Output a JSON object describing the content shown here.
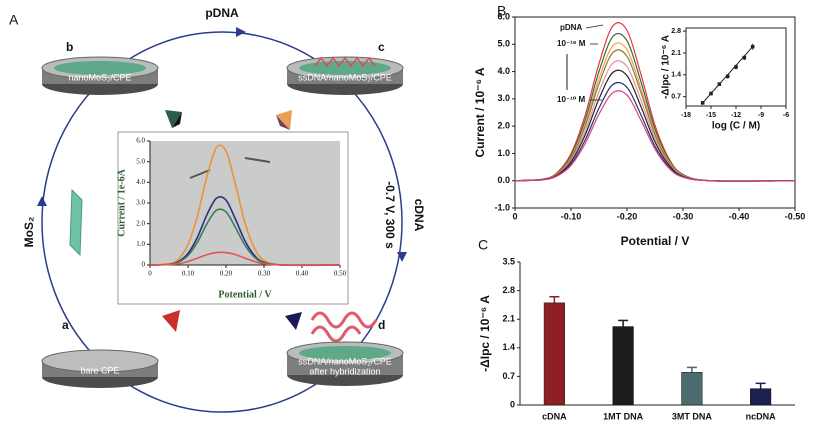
{
  "diagram": {
    "panel_label": "A",
    "nodes": [
      {
        "letter": "a",
        "label": "bare CPE"
      },
      {
        "letter": "b",
        "label": "nanoMoS₂/CPE"
      },
      {
        "letter": "c",
        "label": "ssDNA/nanoMoS₂/CPE"
      },
      {
        "letter": "d",
        "label": "ssDNA/nanoMoS₂/CPE",
        "sublabel": "after hybridization"
      }
    ],
    "edges": [
      {
        "label": "MoS₂"
      },
      {
        "label": "pDNA"
      },
      {
        "label": "cDNA",
        "condition": "-0.7 V, 300 s"
      }
    ]
  },
  "chart_data": [
    {
      "type": "line",
      "x_label": "Potential / V",
      "y_label": "Current / 1e-6A",
      "x": [
        0,
        0.05,
        0.075,
        0.1,
        0.125,
        0.15,
        0.175,
        0.2,
        0.225,
        0.25,
        0.275,
        0.3,
        0.35,
        0.5
      ],
      "series": [
        {
          "color": "#f0913a",
          "values": [
            0,
            0.06,
            0.29,
            0.99,
            2.38,
            4.29,
            5.68,
            5.51,
            3.89,
            2.03,
            0.81,
            0.23,
            0,
            0
          ]
        },
        {
          "color": "#2b2f7c",
          "values": [
            0,
            0.03,
            0.17,
            0.56,
            1.35,
            2.44,
            3.23,
            3.14,
            2.21,
            1.16,
            0.46,
            0.13,
            0,
            0
          ]
        },
        {
          "color": "#3d7d5c",
          "values": [
            0,
            0.03,
            0.14,
            0.46,
            1.11,
            2.0,
            2.65,
            2.57,
            1.81,
            0.95,
            0.38,
            0.11,
            0,
            0
          ]
        },
        {
          "color": "#e25555",
          "values": [
            0,
            0.02,
            0.06,
            0.17,
            0.33,
            0.5,
            0.6,
            0.6,
            0.5,
            0.33,
            0.17,
            0.06,
            0,
            0
          ]
        }
      ],
      "xlim": [
        0,
        0.5
      ],
      "xticks": [
        0,
        {
          "value": 0.1,
          "label": "0.10"
        },
        {
          "value": 0.2,
          "label": "0.20"
        },
        {
          "value": 0.3,
          "label": "0.30"
        },
        {
          "value": 0.4,
          "label": "0.40"
        },
        {
          "value": 0.5,
          "label": "0.50"
        }
      ],
      "ylim": [
        0,
        6
      ],
      "yticks": [
        0,
        {
          "value": 1,
          "label": "1.0"
        },
        {
          "value": 2,
          "label": "2.0"
        },
        {
          "value": 3,
          "label": "3.0"
        },
        {
          "value": 4,
          "label": "4.0"
        },
        {
          "value": 5,
          "label": "5.0"
        },
        {
          "value": 6,
          "label": "6.0"
        }
      ]
    },
    {
      "type": "line",
      "panel_label": "B",
      "x_label": "Potential / V",
      "y_label": "Current / 10⁻⁶ A",
      "x": [
        0,
        -0.05,
        -0.075,
        -0.1,
        -0.125,
        -0.15,
        -0.175,
        -0.2,
        -0.225,
        -0.25,
        -0.275,
        -0.3,
        -0.35,
        -0.5
      ],
      "series": [
        {
          "name": "pDNA",
          "color": "#e8343c",
          "values": [
            0,
            0.06,
            0.29,
            0.99,
            2.38,
            4.29,
            5.68,
            5.51,
            3.89,
            2.03,
            0.81,
            0.23,
            0,
            0
          ]
        },
        {
          "name": "10⁻¹⁶ M",
          "color": "#2f6b45",
          "values": [
            0,
            0.05,
            0.27,
            0.92,
            2.21,
            4.0,
            5.29,
            5.13,
            3.62,
            1.89,
            0.76,
            0.22,
            0,
            0
          ]
        },
        {
          "color": "#f2a23c",
          "values": [
            0,
            0.05,
            0.25,
            0.86,
            2.07,
            3.74,
            4.95,
            4.8,
            3.38,
            1.77,
            0.71,
            0.2,
            0,
            0
          ]
        },
        {
          "color": "#8a7a3a",
          "values": [
            0,
            0.05,
            0.24,
            0.82,
            1.97,
            3.55,
            4.7,
            4.56,
            3.22,
            1.68,
            0.67,
            0.19,
            0,
            0
          ]
        },
        {
          "color": "#e58fa8",
          "values": [
            0,
            0.04,
            0.22,
            0.75,
            1.8,
            3.26,
            4.31,
            4.18,
            2.95,
            1.54,
            0.62,
            0.18,
            0,
            0
          ]
        },
        {
          "color": "#222222",
          "values": [
            0,
            0.04,
            0.2,
            0.69,
            1.66,
            3.0,
            3.97,
            3.85,
            2.71,
            1.42,
            0.57,
            0.16,
            0,
            0
          ]
        },
        {
          "color": "#2a2f78",
          "values": [
            0,
            0.04,
            0.18,
            0.61,
            1.48,
            2.66,
            3.53,
            3.42,
            2.41,
            1.26,
            0.5,
            0.14,
            0,
            0
          ]
        },
        {
          "name": "10⁻¹⁰ M",
          "color": "#d8457a",
          "values": [
            0,
            0.03,
            0.17,
            0.56,
            1.35,
            2.44,
            3.23,
            3.14,
            2.21,
            1.16,
            0.46,
            0.13,
            0,
            0
          ]
        }
      ],
      "xlim": [
        0,
        -0.5
      ],
      "xticks": [
        0,
        {
          "value": -0.1,
          "label": "-0.10"
        },
        {
          "value": -0.2,
          "label": "-0.20"
        },
        {
          "value": -0.3,
          "label": "-0.30"
        },
        {
          "value": -0.4,
          "label": "-0.40"
        },
        {
          "value": -0.5,
          "label": "-0.50"
        }
      ],
      "ylim": [
        -1,
        6
      ],
      "yticks": [
        {
          "value": -1,
          "label": "-1.0"
        },
        {
          "value": 0,
          "label": "0.0"
        },
        {
          "value": 1,
          "label": "1.0"
        },
        {
          "value": 2,
          "label": "2.0"
        },
        {
          "value": 3,
          "label": "3.0"
        },
        {
          "value": 4,
          "label": "4.0"
        },
        {
          "value": 5,
          "label": "5.0"
        },
        {
          "value": 6,
          "label": "6.0"
        }
      ]
    },
    {
      "type": "scatter",
      "x_label": "log (C / M)",
      "y_label": "-ΔIpc / 10⁻⁶ A",
      "x": [
        -16,
        -15,
        -14,
        -13,
        -12,
        -11,
        -10
      ],
      "values": [
        0.5,
        0.8,
        1.1,
        1.35,
        1.65,
        1.95,
        2.3
      ],
      "errors": [
        0.05,
        0.06,
        0.05,
        0.07,
        0.08,
        0.08,
        0.1
      ],
      "color": "#222222",
      "xlim": [
        -18,
        -6
      ],
      "xticks": [
        -18,
        -15,
        -12,
        -9,
        -6
      ],
      "ylim": [
        0.4,
        2.9
      ],
      "yticks": [
        0.7,
        1.4,
        2.1,
        2.8
      ]
    },
    {
      "type": "bar",
      "panel_label": "C",
      "y_label": "-ΔIpc / 10⁻⁶ A",
      "categories": [
        "cDNA",
        "1MT DNA",
        "3MT DNA",
        "ncDNA"
      ],
      "values": [
        2.5,
        1.92,
        0.8,
        0.4
      ],
      "errors": [
        0.15,
        0.15,
        0.12,
        0.13
      ],
      "colors": [
        "#8e1f22",
        "#1c1c1c",
        "#4b6b70",
        "#1d1f4e"
      ],
      "ylim": [
        0,
        3.5
      ],
      "yticks": [
        0,
        0.7,
        1.4,
        2.1,
        2.8,
        3.5
      ]
    }
  ]
}
